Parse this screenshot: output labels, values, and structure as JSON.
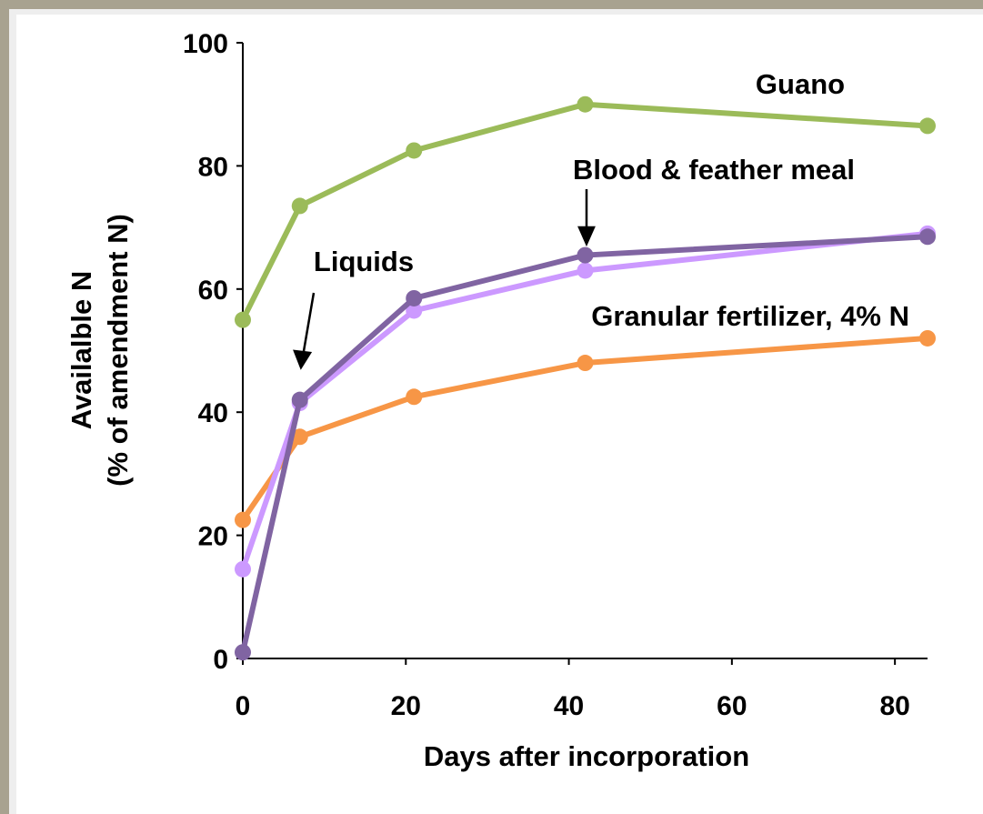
{
  "chart_data": {
    "type": "line",
    "y_label": [
      "Availalble N",
      "(% of amendment N)"
    ],
    "x_label": "Days after incorporation",
    "x": [
      0,
      7,
      21,
      42,
      84
    ],
    "xlim": [
      0,
      84
    ],
    "xticks": [
      0,
      20,
      40,
      60,
      80
    ],
    "ylim": [
      0,
      100
    ],
    "yticks": [
      0,
      20,
      40,
      60,
      80,
      100
    ],
    "series": [
      {
        "name": "Guano",
        "color": "#9bbb59",
        "values": [
          55,
          73.5,
          82.5,
          90,
          86.5
        ]
      },
      {
        "name": "Granular fertilizer, 4% N",
        "color": "#f79646",
        "values": [
          22.5,
          36,
          42.5,
          48,
          52
        ]
      },
      {
        "name": "Liquids",
        "color": "#cc99ff",
        "values": [
          14.5,
          41.5,
          56.5,
          63,
          69
        ]
      },
      {
        "name": "Blood & feather meal",
        "color": "#8064a2",
        "values": [
          1,
          42,
          58.5,
          65.5,
          68.5
        ]
      }
    ]
  }
}
